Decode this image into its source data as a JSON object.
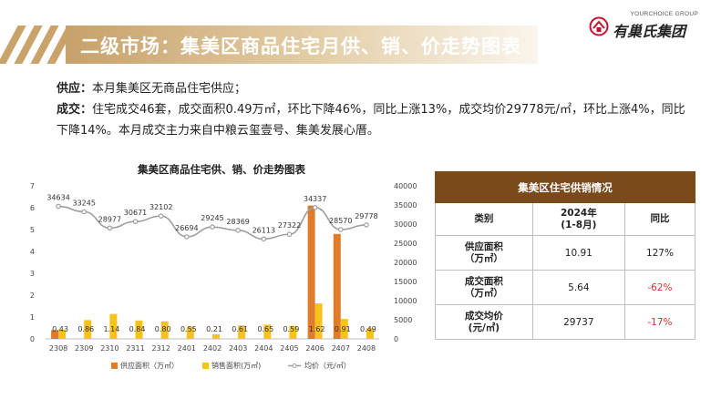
{
  "header": {
    "title": "二级市场：集美区商品住宅月供、销、价走势图表"
  },
  "logo": {
    "en": "YOURCHOICE GROUP",
    "cn": "有巢氏集团"
  },
  "summary": {
    "supply_label": "供应：",
    "supply_text": "本月集美区无商品住宅供应；",
    "deal_label": "成交：",
    "deal_text": "住宅成交46套，成交面积0.49万㎡，环比下降46%，同比上涨13%，成交均价29778元/㎡，环比上涨4%，同比下降14%。本月成交主力来自中粮云玺壹号、集美发展心厝。"
  },
  "chart_data": {
    "type": "bar",
    "title": "集美区商品住宅供、销、价走势图表",
    "categories": [
      "2308",
      "2309",
      "2310",
      "2311",
      "2312",
      "2401",
      "2402",
      "2403",
      "2404",
      "2405",
      "2406",
      "2407",
      "2408"
    ],
    "series": [
      {
        "name": "供应面积（万㎡）",
        "kind": "bar",
        "axis": "left",
        "color": "#e07b2a",
        "values": [
          0.4,
          0,
          0,
          0,
          0,
          0,
          0,
          0,
          0,
          0,
          6.1,
          4.8,
          0
        ]
      },
      {
        "name": "销售面积(万㎡)",
        "kind": "bar",
        "axis": "left",
        "color": "#f7c21a",
        "values": [
          0.43,
          0.86,
          1.14,
          0.84,
          0.8,
          0.55,
          0.21,
          0.61,
          0.65,
          0.59,
          1.62,
          0.91,
          0.49
        ]
      },
      {
        "name": "均价（元/㎡）",
        "kind": "line",
        "axis": "right",
        "color": "#9e9e9e",
        "values": [
          34634,
          33245,
          28977,
          30671,
          32102,
          26694,
          29245,
          28369,
          26113,
          27322,
          34337,
          28570,
          29778
        ]
      }
    ],
    "sales_labels": [
      "0.43",
      "0.86",
      "1.14",
      "0.84",
      "0.80",
      "0.55",
      "0.21",
      "0.61",
      "0.65",
      "0.59",
      "1.62",
      "0.91",
      "0.49"
    ],
    "y_left": {
      "min": 0,
      "max": 7,
      "ticks": [
        "0",
        "1",
        "2",
        "3",
        "4",
        "5",
        "6",
        "7"
      ]
    },
    "y_right": {
      "min": 0,
      "max": 40000,
      "ticks": [
        "0",
        "5000",
        "10000",
        "15000",
        "20000",
        "25000",
        "30000",
        "35000",
        "40000"
      ]
    },
    "legend_position": "bottom",
    "grid": false
  },
  "table": {
    "title": "集美区住宅供销情况",
    "col_category": "类别",
    "col_period_line1": "2024年",
    "col_period_line2": "(1-8月)",
    "col_yoy": "同比",
    "rows": [
      {
        "label1": "供应面积",
        "label2": "（万㎡）",
        "value": "10.91",
        "yoy": "127%",
        "neg": false
      },
      {
        "label1": "成交面积",
        "label2": "（万㎡）",
        "value": "5.64",
        "yoy": "-62%",
        "neg": true
      },
      {
        "label1": "成交均价",
        "label2": "(元/㎡)",
        "value": "29737",
        "yoy": "-17%",
        "neg": true
      }
    ]
  }
}
